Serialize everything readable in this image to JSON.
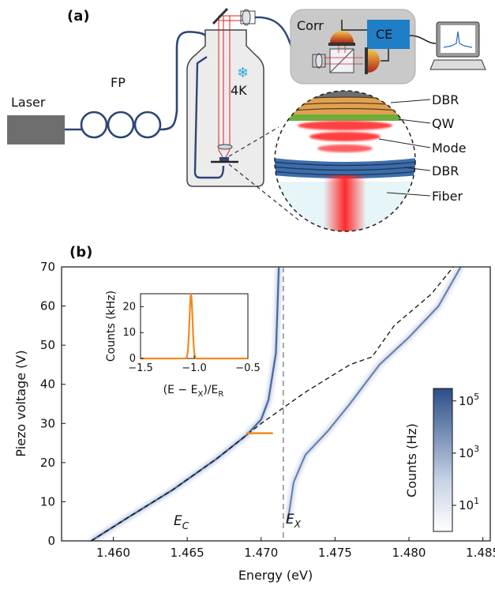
{
  "panel_a": {
    "label": "(a)",
    "laser": "Laser",
    "fp": "FP",
    "cryostat": "4K",
    "corr": "Corr",
    "ce": "CE",
    "labels": [
      "DBR",
      "QW",
      "Mode",
      "DBR",
      "Fiber"
    ]
  },
  "panel_b": {
    "label": "(b)",
    "xlabel": "Energy (eV)",
    "ylabel": "Piezo voltage (V)",
    "ec_label": "E",
    "ec_sub": "C",
    "ex_label": "E",
    "ex_sub": "X",
    "colorbar_label": "Counts (Hz)",
    "colorbar_ticks": [
      {
        "base": "10",
        "exp": "5"
      },
      {
        "base": "10",
        "exp": "3"
      },
      {
        "base": "10",
        "exp": "1"
      }
    ],
    "inset": {
      "ylabel": "Counts (kHz)",
      "xlabel": "(E − E",
      "xlabel_sub1": "X",
      "xlabel_mid": ")/E",
      "xlabel_sub2": "R"
    }
  },
  "chart_data": {
    "type": "heatmap",
    "xlabel": "Energy (eV)",
    "ylabel": "Piezo voltage (V)",
    "xlim": [
      1.4565,
      1.4855
    ],
    "ylim": [
      0,
      70
    ],
    "xticks": [
      "1.460",
      "1.465",
      "1.470",
      "1.475",
      "1.480",
      "1.485"
    ],
    "xtick_values": [
      1.46,
      1.465,
      1.47,
      1.475,
      1.48,
      1.485
    ],
    "yticks": [
      "0",
      "10",
      "20",
      "30",
      "40",
      "50",
      "60",
      "70"
    ],
    "ytick_values": [
      0,
      10,
      20,
      30,
      40,
      50,
      60,
      70
    ],
    "exciton_energy": 1.4715,
    "cavity_dashed": {
      "x": [
        1.4585,
        1.461,
        1.464,
        1.467,
        1.47,
        1.473,
        1.476,
        1.4775,
        1.479,
        1.4815,
        1.483
      ],
      "y": [
        0,
        6,
        13,
        21,
        30,
        38,
        45,
        47,
        55,
        63,
        70
      ]
    },
    "lower_polariton": {
      "x": [
        1.4585,
        1.461,
        1.464,
        1.467,
        1.469,
        1.47,
        1.4705,
        1.471,
        1.4712
      ],
      "y": [
        0,
        6,
        13,
        21,
        27,
        31,
        36,
        48,
        70
      ]
    },
    "upper_polariton": {
      "x": [
        1.4718,
        1.4722,
        1.473,
        1.4745,
        1.476,
        1.478,
        1.48,
        1.482,
        1.4835
      ],
      "y": [
        5,
        15,
        22,
        28,
        35,
        45,
        52,
        60,
        70
      ]
    },
    "orange_marker": {
      "x": [
        1.469,
        1.4708
      ],
      "y": 27.5
    },
    "colorbar": {
      "scale": "log",
      "range": [
        1,
        300000
      ]
    },
    "inset": {
      "type": "line",
      "xlim": [
        -1.5,
        -0.5
      ],
      "ylim": [
        0,
        25
      ],
      "xticks": [
        "−1.5",
        "−1.0",
        "−0.5"
      ],
      "xtick_values": [
        -1.5,
        -1.0,
        -0.5
      ],
      "yticks": [
        "0",
        "10",
        "20"
      ],
      "ytick_values": [
        0,
        10,
        20
      ],
      "peak_center": -1.03,
      "peak_height": 25,
      "peak_width": 0.02
    }
  }
}
